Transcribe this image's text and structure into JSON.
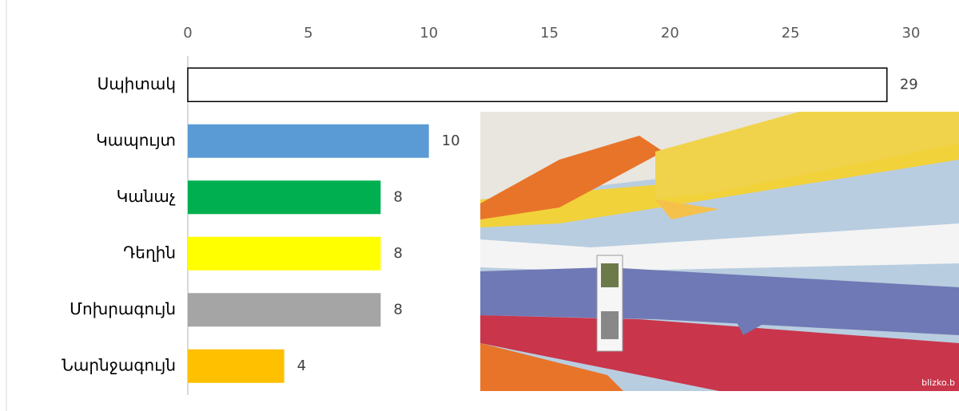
{
  "chart_data": {
    "type": "bar",
    "orientation": "horizontal",
    "categories": [
      "Սպիտակ",
      "Կապույտ",
      "Կանաչ",
      "Դեղին",
      "Մոխրագույն",
      "Նարնջագույն"
    ],
    "values": [
      29,
      10,
      8,
      8,
      8,
      4
    ],
    "colors": [
      "#ffffff",
      "#5b9bd5",
      "#00b050",
      "#ffff00",
      "#a5a5a5",
      "#ffc000"
    ],
    "xlim": [
      0,
      30
    ],
    "xticks": [
      0,
      5,
      10,
      15,
      20,
      25,
      30
    ]
  },
  "photo": {
    "watermark": "blizko.b"
  }
}
